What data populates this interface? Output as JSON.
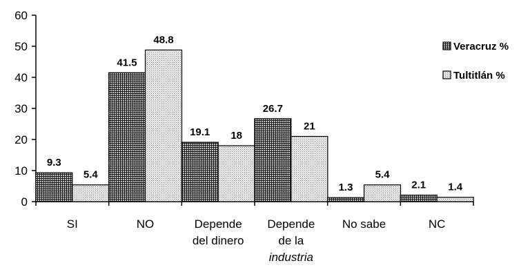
{
  "chart_data": {
    "type": "bar",
    "categories": [
      [
        "SI"
      ],
      [
        "NO"
      ],
      [
        "Depende",
        "del dinero"
      ],
      [
        "Depende",
        "de la",
        "industria"
      ],
      [
        "No sabe"
      ],
      [
        "NC"
      ]
    ],
    "series": [
      {
        "name": "Veracruz %",
        "values": [
          9.3,
          41.5,
          19.1,
          26.7,
          1.3,
          2.1
        ],
        "pattern": "grid"
      },
      {
        "name": "Tultitlán %",
        "values": [
          5.4,
          48.8,
          18,
          21,
          5.4,
          1.4
        ],
        "pattern": "dots"
      }
    ],
    "ylim": [
      0,
      60
    ],
    "yticks": [
      0,
      10,
      20,
      30,
      40,
      50,
      60
    ],
    "legend_position": "right",
    "grid": false
  }
}
